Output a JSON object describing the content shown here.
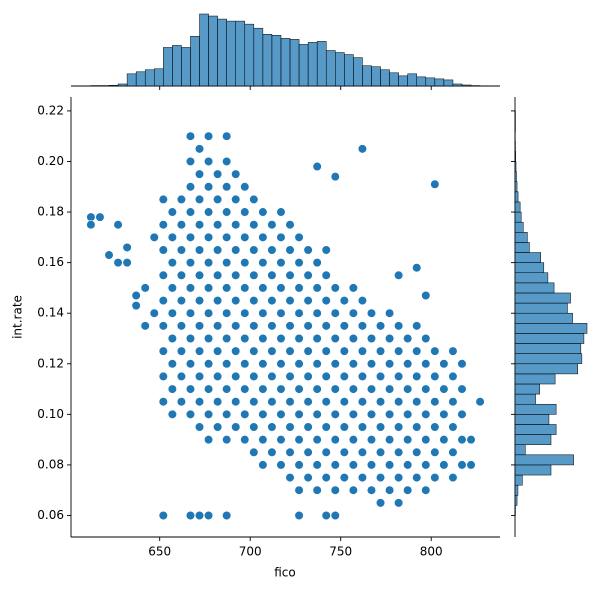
{
  "chart_data": [
    {
      "type": "scatter",
      "x_label": "fico",
      "y_label": "int.rate",
      "color": "#1f77b4",
      "xlim": [
        601,
        838
      ],
      "ylim": [
        0.0515,
        0.2255
      ],
      "xticks": [
        650,
        700,
        750,
        800
      ],
      "yticks": [
        0.06,
        0.08,
        {
          "value": 0.1,
          "label": "0.10"
        },
        0.12,
        0.14,
        0.16,
        0.18,
        {
          "value": 0.2,
          "label": "0.20"
        },
        0.22
      ],
      "x": [
        652,
        652,
        652,
        652,
        652,
        652,
        652,
        652,
        652,
        657,
        657,
        657,
        657,
        657,
        657,
        657,
        657,
        657,
        662,
        662,
        662,
        662,
        662,
        662,
        662,
        662,
        662,
        667,
        667,
        667,
        667,
        667,
        667,
        667,
        667,
        667,
        667,
        667,
        667,
        672,
        672,
        672,
        672,
        672,
        672,
        672,
        672,
        672,
        672,
        672,
        672,
        677,
        677,
        677,
        677,
        677,
        677,
        677,
        677,
        677,
        677,
        677,
        677,
        677,
        682,
        682,
        682,
        682,
        682,
        682,
        682,
        682,
        682,
        682,
        682,
        687,
        687,
        687,
        687,
        687,
        687,
        687,
        687,
        687,
        687,
        687,
        687,
        687,
        692,
        692,
        692,
        692,
        692,
        692,
        692,
        692,
        692,
        692,
        692,
        697,
        697,
        697,
        697,
        697,
        697,
        697,
        697,
        697,
        697,
        697,
        702,
        702,
        702,
        702,
        702,
        702,
        702,
        702,
        702,
        702,
        702,
        707,
        707,
        707,
        707,
        707,
        707,
        707,
        707,
        707,
        707,
        707,
        712,
        712,
        712,
        712,
        712,
        712,
        712,
        712,
        712,
        712,
        717,
        717,
        717,
        717,
        717,
        717,
        717,
        717,
        717,
        717,
        717,
        722,
        722,
        722,
        722,
        722,
        722,
        722,
        722,
        722,
        722,
        722,
        727,
        727,
        727,
        727,
        727,
        727,
        727,
        727,
        727,
        727,
        727,
        732,
        732,
        732,
        732,
        732,
        732,
        732,
        732,
        732,
        732,
        737,
        737,
        737,
        737,
        737,
        737,
        737,
        737,
        737,
        737,
        742,
        742,
        742,
        742,
        742,
        742,
        742,
        742,
        742,
        742,
        747,
        747,
        747,
        747,
        747,
        747,
        747,
        747,
        747,
        752,
        752,
        752,
        752,
        752,
        752,
        752,
        752,
        757,
        757,
        757,
        757,
        757,
        757,
        757,
        757,
        757,
        762,
        762,
        762,
        762,
        762,
        762,
        762,
        762,
        767,
        767,
        767,
        767,
        767,
        767,
        767,
        767,
        772,
        772,
        772,
        772,
        772,
        772,
        772,
        772,
        777,
        777,
        777,
        777,
        777,
        777,
        777,
        777,
        782,
        782,
        782,
        782,
        782,
        782,
        782,
        782,
        787,
        787,
        787,
        787,
        787,
        787,
        787,
        792,
        792,
        792,
        792,
        792,
        792,
        792,
        797,
        797,
        797,
        797,
        797,
        797,
        797,
        802,
        802,
        802,
        802,
        802,
        802,
        807,
        807,
        807,
        807,
        807,
        812,
        812,
        812,
        812,
        812,
        817,
        817,
        817,
        817,
        822,
        822,
        612,
        612,
        617,
        622,
        627,
        627,
        632,
        632,
        637,
        637,
        642,
        642,
        647,
        647,
        652,
        667,
        672,
        677,
        687,
        727,
        742,
        747,
        737,
        747,
        762,
        802,
        827,
        817,
        812,
        797,
        792,
        782
      ],
      "values": [
        0.105,
        0.115,
        0.125,
        0.135,
        0.145,
        0.155,
        0.165,
        0.175,
        0.185,
        0.1,
        0.11,
        0.12,
        0.13,
        0.14,
        0.15,
        0.16,
        0.17,
        0.18,
        0.105,
        0.115,
        0.125,
        0.135,
        0.145,
        0.155,
        0.165,
        0.175,
        0.185,
        0.1,
        0.11,
        0.12,
        0.13,
        0.14,
        0.15,
        0.16,
        0.17,
        0.18,
        0.19,
        0.2,
        0.21,
        0.095,
        0.105,
        0.115,
        0.125,
        0.135,
        0.145,
        0.155,
        0.165,
        0.175,
        0.185,
        0.195,
        0.205,
        0.09,
        0.1,
        0.11,
        0.12,
        0.13,
        0.14,
        0.15,
        0.16,
        0.17,
        0.18,
        0.19,
        0.2,
        0.21,
        0.095,
        0.105,
        0.115,
        0.125,
        0.135,
        0.145,
        0.155,
        0.165,
        0.175,
        0.185,
        0.195,
        0.09,
        0.1,
        0.11,
        0.12,
        0.13,
        0.14,
        0.15,
        0.16,
        0.17,
        0.18,
        0.19,
        0.2,
        0.21,
        0.095,
        0.105,
        0.115,
        0.125,
        0.135,
        0.145,
        0.155,
        0.165,
        0.175,
        0.185,
        0.195,
        0.09,
        0.1,
        0.11,
        0.12,
        0.13,
        0.14,
        0.15,
        0.16,
        0.17,
        0.18,
        0.19,
        0.085,
        0.095,
        0.105,
        0.115,
        0.125,
        0.135,
        0.145,
        0.155,
        0.165,
        0.175,
        0.185,
        0.08,
        0.09,
        0.1,
        0.11,
        0.12,
        0.13,
        0.14,
        0.15,
        0.16,
        0.17,
        0.18,
        0.085,
        0.095,
        0.105,
        0.115,
        0.125,
        0.135,
        0.145,
        0.155,
        0.165,
        0.175,
        0.08,
        0.09,
        0.1,
        0.11,
        0.12,
        0.13,
        0.14,
        0.15,
        0.16,
        0.17,
        0.18,
        0.075,
        0.085,
        0.095,
        0.105,
        0.115,
        0.125,
        0.135,
        0.145,
        0.155,
        0.165,
        0.175,
        0.07,
        0.08,
        0.09,
        0.1,
        0.11,
        0.12,
        0.13,
        0.14,
        0.15,
        0.16,
        0.17,
        0.075,
        0.085,
        0.095,
        0.105,
        0.115,
        0.125,
        0.135,
        0.145,
        0.155,
        0.165,
        0.07,
        0.08,
        0.09,
        0.1,
        0.11,
        0.12,
        0.13,
        0.14,
        0.15,
        0.16,
        0.075,
        0.085,
        0.095,
        0.105,
        0.115,
        0.125,
        0.135,
        0.145,
        0.155,
        0.165,
        0.07,
        0.08,
        0.09,
        0.1,
        0.11,
        0.12,
        0.13,
        0.14,
        0.15,
        0.075,
        0.085,
        0.095,
        0.105,
        0.115,
        0.125,
        0.135,
        0.145,
        0.07,
        0.08,
        0.09,
        0.1,
        0.11,
        0.12,
        0.13,
        0.14,
        0.15,
        0.075,
        0.085,
        0.095,
        0.105,
        0.115,
        0.125,
        0.135,
        0.145,
        0.07,
        0.08,
        0.09,
        0.1,
        0.11,
        0.12,
        0.13,
        0.14,
        0.065,
        0.075,
        0.085,
        0.095,
        0.105,
        0.115,
        0.125,
        0.135,
        0.07,
        0.08,
        0.09,
        0.1,
        0.11,
        0.12,
        0.13,
        0.14,
        0.065,
        0.075,
        0.085,
        0.095,
        0.105,
        0.115,
        0.125,
        0.135,
        0.07,
        0.08,
        0.09,
        0.1,
        0.11,
        0.12,
        0.13,
        0.075,
        0.085,
        0.095,
        0.105,
        0.115,
        0.125,
        0.135,
        0.07,
        0.08,
        0.09,
        0.1,
        0.11,
        0.12,
        0.13,
        0.075,
        0.085,
        0.095,
        0.105,
        0.115,
        0.125,
        0.08,
        0.09,
        0.1,
        0.11,
        0.12,
        0.075,
        0.085,
        0.095,
        0.105,
        0.115,
        0.08,
        0.09,
        0.1,
        0.11,
        0.08,
        0.09,
        0.178,
        0.175,
        0.178,
        0.163,
        0.175,
        0.16,
        0.16,
        0.166,
        0.147,
        0.143,
        0.135,
        0.15,
        0.14,
        0.17,
        0.06,
        0.06,
        0.06,
        0.06,
        0.06,
        0.06,
        0.06,
        0.06,
        0.198,
        0.194,
        0.205,
        0.191,
        0.105,
        0.12,
        0.125,
        0.147,
        0.158,
        0.155
      ]
    },
    {
      "type": "histogram",
      "orientation": "vertical",
      "color": "#1f77b4",
      "bins": [
        612,
        617,
        622,
        627,
        632,
        637,
        642,
        647,
        652,
        657,
        662,
        667,
        672,
        677,
        682,
        687,
        692,
        697,
        702,
        707,
        712,
        717,
        722,
        727,
        732,
        737,
        742,
        747,
        752,
        757,
        762,
        767,
        772,
        777,
        782,
        787,
        792,
        797,
        802,
        807,
        812,
        817,
        822,
        827
      ],
      "values": [
        3,
        3,
        5,
        14,
        84,
        98,
        112,
        119,
        266,
        280,
        266,
        343,
        497,
        483,
        462,
        448,
        448,
        427,
        399,
        357,
        350,
        329,
        322,
        287,
        301,
        308,
        245,
        231,
        217,
        196,
        140,
        133,
        112,
        91,
        70,
        84,
        63,
        56,
        49,
        42,
        14,
        7,
        3
      ]
    },
    {
      "type": "histogram",
      "orientation": "horizontal",
      "color": "#1f77b4",
      "bins": [
        0.06,
        0.064,
        0.068,
        0.072,
        0.076,
        0.08,
        0.084,
        0.088,
        0.092,
        0.096,
        0.1,
        0.104,
        0.108,
        0.112,
        0.116,
        0.12,
        0.124,
        0.128,
        0.132,
        0.136,
        0.14,
        0.144,
        0.148,
        0.152,
        0.156,
        0.16,
        0.164,
        0.168,
        0.172,
        0.176,
        0.18,
        0.184,
        0.188,
        0.192,
        0.196,
        0.2,
        0.204,
        0.208,
        0.212,
        0.216,
        0.22
      ],
      "values": [
        3,
        14,
        20,
        50,
        245,
        399,
        70,
        245,
        280,
        231,
        280,
        140,
        168,
        273,
        427,
        455,
        448,
        469,
        490,
        392,
        357,
        378,
        266,
        224,
        196,
        175,
        98,
        84,
        56,
        42,
        35,
        21,
        14,
        10,
        7,
        5,
        3,
        2,
        3,
        3
      ]
    }
  ]
}
